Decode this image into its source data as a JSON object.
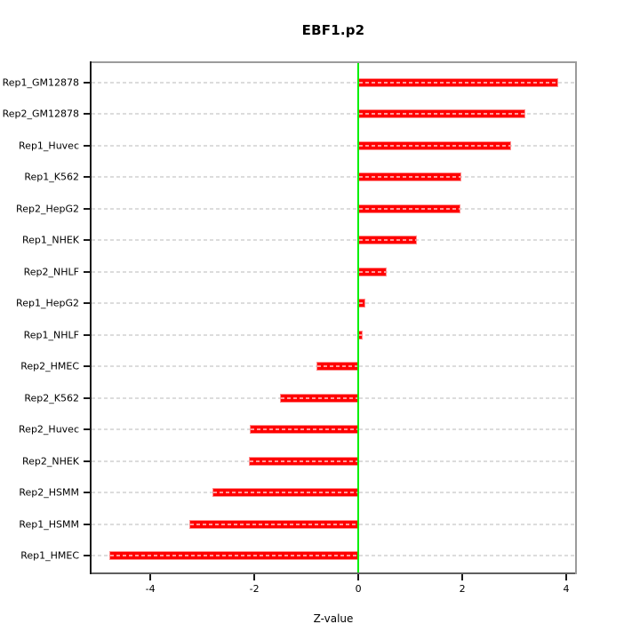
{
  "title": "EBF1.p2",
  "chart_data": {
    "type": "bar",
    "orientation": "horizontal",
    "title": "EBF1.p2",
    "xlabel": "Z-value",
    "ylabel": "",
    "categories": [
      "Rep1_GM12878",
      "Rep2_GM12878",
      "Rep1_Huvec",
      "Rep1_K562",
      "Rep2_HepG2",
      "Rep1_NHEK",
      "Rep2_NHLF",
      "Rep1_HepG2",
      "Rep1_NHLF",
      "Rep2_HMEC",
      "Rep2_K562",
      "Rep2_Huvec",
      "Rep2_NHEK",
      "Rep2_HSMM",
      "Rep1_HSMM",
      "Rep1_HMEC"
    ],
    "values": [
      3.84,
      3.21,
      2.94,
      1.99,
      1.97,
      1.13,
      0.55,
      0.14,
      0.08,
      -0.8,
      -1.5,
      -2.09,
      -2.1,
      -2.8,
      -3.25,
      -4.79
    ],
    "xticks": [
      -4,
      -2,
      0,
      2,
      4
    ],
    "xlim": [
      -5.13,
      4.17
    ],
    "grid": "horizontal dashed per category",
    "legend": "none",
    "colors": {
      "bar_fill": "#ff0000",
      "bar_texture_dash": "#ff9a9a",
      "zero_line": "#00ef00",
      "grid_line": "#dcdcdc",
      "box_border": "#9b9b9b",
      "axis": "#1a1a1a",
      "background": "#ffffff"
    }
  }
}
